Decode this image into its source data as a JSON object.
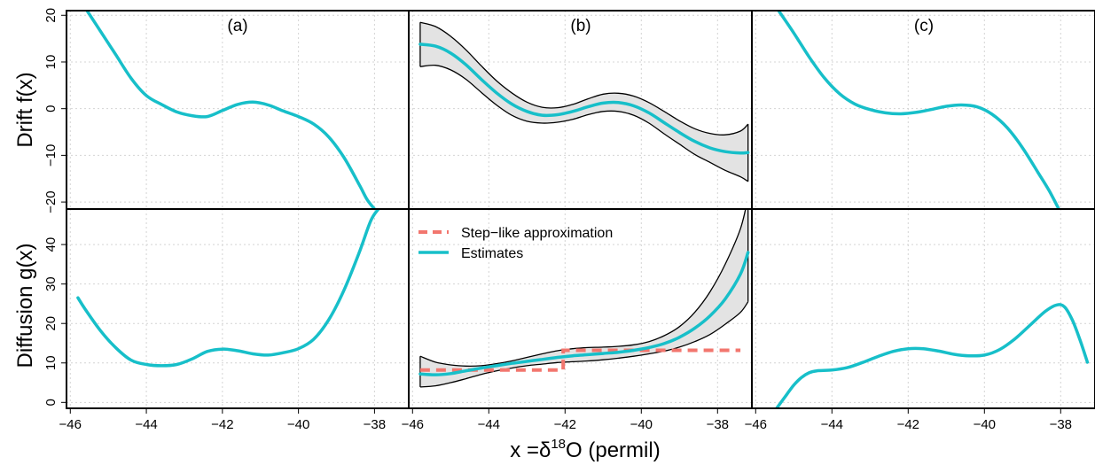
{
  "colors": {
    "estimate": "#17bfc9",
    "step": "#f2766e",
    "band_fill": "#e3e3e3",
    "grid": "#d4d4d4"
  },
  "axis": {
    "xlabel_prefix": "x =",
    "xlabel_delta": "δ",
    "xlabel_sup": "18",
    "xlabel_suffix": "O (permil)"
  },
  "legend": {
    "step_label": "Step−like approximation",
    "estimate_label": "Estimates"
  },
  "chart_data": {
    "type": "line",
    "xlim": [
      -46.1,
      -37.1
    ],
    "xticks": [
      -46,
      -44,
      -42,
      -40,
      -38
    ],
    "xtick_labels": [
      "−46",
      "−44",
      "−42",
      "−40",
      "−38"
    ],
    "columns": [
      "(a)",
      "(b)",
      "(c)"
    ],
    "rows": [
      {
        "ylabel": "Drift f(x)",
        "ylim": [
          -21.5,
          21
        ],
        "yticks": [
          -20,
          -10,
          0,
          10,
          20
        ],
        "ytick_labels": [
          "−20",
          "−10",
          "0",
          "10",
          "20"
        ],
        "panels": [
          {
            "x": [
              -45.8,
              -45.6,
              -45.2,
              -44.8,
              -44.4,
              -44.0,
              -43.6,
              -43.2,
              -42.8,
              -42.4,
              -42.0,
              -41.6,
              -41.2,
              -40.8,
              -40.4,
              -40.0,
              -39.6,
              -39.2,
              -38.8,
              -38.4,
              -38.2,
              -38.0
            ],
            "estimate": [
              24,
              21.5,
              16.5,
              11.5,
              6.5,
              2.8,
              0.9,
              -0.7,
              -1.5,
              -1.7,
              -0.4,
              0.9,
              1.4,
              0.8,
              -0.5,
              -1.7,
              -3.3,
              -6.1,
              -10.5,
              -16.3,
              -19.4,
              -21.5
            ]
          },
          {
            "x": [
              -45.8,
              -45.4,
              -45.0,
              -44.6,
              -44.2,
              -43.8,
              -43.4,
              -43.0,
              -42.6,
              -42.2,
              -41.8,
              -41.4,
              -41.0,
              -40.6,
              -40.2,
              -39.8,
              -39.4,
              -39.0,
              -38.6,
              -38.2,
              -37.8,
              -37.4,
              -37.2
            ],
            "estimate": [
              13.8,
              13.4,
              11.9,
              9.4,
              6.3,
              3.4,
              1.0,
              -0.6,
              -1.4,
              -1.3,
              -0.6,
              0.4,
              1.2,
              1.3,
              0.6,
              -0.9,
              -3.0,
              -5.1,
              -7.0,
              -8.4,
              -9.2,
              -9.5,
              -9.4
            ],
            "upper": [
              18.5,
              17.6,
              15.5,
              12.6,
              9.2,
              6.0,
              3.4,
              1.4,
              0.3,
              0.2,
              0.9,
              2.1,
              3.1,
              3.3,
              2.7,
              1.3,
              -0.6,
              -2.6,
              -4.3,
              -5.3,
              -5.6,
              -4.8,
              -3.3
            ],
            "lower": [
              9.0,
              9.3,
              8.3,
              6.3,
              3.5,
              0.8,
              -1.4,
              -2.7,
              -3.1,
              -2.9,
              -2.3,
              -1.3,
              -0.6,
              -0.6,
              -1.4,
              -3.1,
              -5.4,
              -7.6,
              -9.8,
              -11.5,
              -13.2,
              -14.6,
              -15.6
            ]
          },
          {
            "x": [
              -45.4,
              -45.0,
              -44.6,
              -44.2,
              -43.8,
              -43.4,
              -43.0,
              -42.6,
              -42.2,
              -41.8,
              -41.4,
              -41.0,
              -40.6,
              -40.2,
              -39.8,
              -39.4,
              -39.0,
              -38.6,
              -38.3,
              -38.05
            ],
            "estimate": [
              21,
              16.2,
              11.1,
              6.6,
              3.2,
              1.0,
              -0.2,
              -0.9,
              -1.1,
              -0.8,
              -0.2,
              0.5,
              0.8,
              0.4,
              -1.2,
              -4.1,
              -8.4,
              -13.6,
              -17.6,
              -21.5
            ]
          }
        ]
      },
      {
        "ylabel": "Diffusion g(x)",
        "ylim": [
          -1.5,
          49
        ],
        "yticks": [
          0,
          10,
          20,
          30,
          40
        ],
        "ytick_labels": [
          "0",
          "10",
          "20",
          "30",
          "40"
        ],
        "panels": [
          {
            "x": [
              -45.8,
              -45.6,
              -45.2,
              -44.8,
              -44.4,
              -44.0,
              -43.6,
              -43.2,
              -42.8,
              -42.4,
              -42.0,
              -41.6,
              -41.2,
              -40.8,
              -40.4,
              -40.0,
              -39.6,
              -39.2,
              -38.8,
              -38.4,
              -38.1,
              -37.9
            ],
            "estimate": [
              26.5,
              23.5,
              18.1,
              13.8,
              10.7,
              9.6,
              9.3,
              9.6,
              11.0,
              12.9,
              13.5,
              13.1,
              12.3,
              12.0,
              12.6,
              13.6,
              16.0,
              21.0,
              28.5,
              38.0,
              46.0,
              49.0
            ]
          },
          {
            "x": [
              -45.8,
              -45.4,
              -45.0,
              -44.6,
              -44.2,
              -43.8,
              -43.4,
              -43.0,
              -42.6,
              -42.2,
              -41.8,
              -41.4,
              -41.0,
              -40.6,
              -40.2,
              -39.8,
              -39.4,
              -39.0,
              -38.6,
              -38.2,
              -37.8,
              -37.4,
              -37.2
            ],
            "estimate": [
              7.2,
              7.0,
              7.3,
              8.0,
              8.7,
              9.3,
              9.9,
              10.4,
              10.9,
              11.4,
              11.8,
              12.1,
              12.4,
              12.7,
              13.2,
              13.9,
              14.9,
              16.5,
              18.8,
              21.9,
              26.2,
              32.5,
              38.0
            ],
            "upper": [
              11.7,
              10.2,
              9.5,
              9.2,
              9.3,
              9.8,
              10.5,
              11.4,
              12.3,
              13.1,
              13.6,
              13.9,
              14.0,
              14.2,
              14.6,
              15.4,
              16.9,
              19.2,
              22.8,
              28.0,
              35.0,
              44.0,
              52.0
            ],
            "lower": [
              3.9,
              4.2,
              5.0,
              6.0,
              7.1,
              8.0,
              8.7,
              9.3,
              9.7,
              10.1,
              10.3,
              10.5,
              10.8,
              11.2,
              11.7,
              12.3,
              13.0,
              14.0,
              15.4,
              17.2,
              19.8,
              22.8,
              25.5
            ],
            "step": [
              8.0,
              8.0,
              8.0,
              8.0,
              8.0,
              8.0,
              8.0,
              8.0,
              8.0,
              8.0,
              13.0,
              13.0,
              13.0,
              13.0,
              13.0,
              13.0,
              13.0,
              13.0,
              13.0,
              13.0,
              13.0,
              13.0,
              13.0
            ],
            "step_x": [
              -45.8,
              -42.05,
              -42.05,
              -37.4
            ],
            "step_y": [
              8.2,
              8.2,
              13.2,
              13.2
            ]
          },
          {
            "x": [
              -45.45,
              -45.2,
              -45.0,
              -44.8,
              -44.6,
              -44.4,
              -44.0,
              -43.6,
              -43.2,
              -42.8,
              -42.4,
              -42.0,
              -41.6,
              -41.2,
              -40.8,
              -40.4,
              -40.0,
              -39.6,
              -39.2,
              -38.8,
              -38.4,
              -38.1,
              -37.9,
              -37.7,
              -37.5,
              -37.3
            ],
            "estimate": [
              -1.5,
              1.8,
              4.4,
              6.3,
              7.5,
              8.0,
              8.2,
              8.8,
              10.1,
              11.6,
              12.9,
              13.6,
              13.6,
              13.0,
              12.2,
              11.8,
              12.0,
              13.4,
              16.1,
              19.6,
              23.1,
              24.7,
              24.2,
              21.0,
              16.0,
              10.2
            ]
          }
        ]
      }
    ]
  }
}
